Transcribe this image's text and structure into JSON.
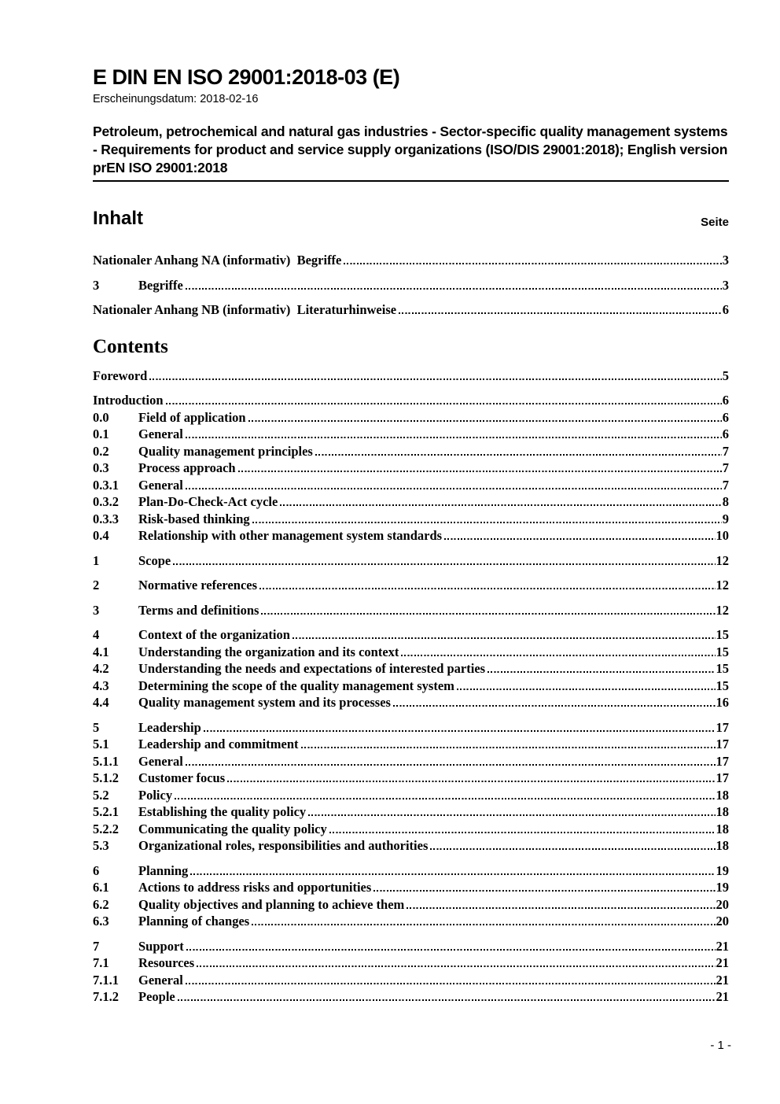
{
  "header": {
    "title": "E DIN EN ISO 29001:2018-03 (E)",
    "date_line": "Erscheinungsdatum: 2018-02-16",
    "subject": "Petroleum, petrochemical and natural gas industries - Sector-specific quality management systems - Requirements for product and service supply organizations (ISO/DIS 29001:2018); English version prEN ISO 29001:2018"
  },
  "inhalt": {
    "heading": "Inhalt",
    "page_column_label": "Seite",
    "groups": [
      [
        {
          "num": "",
          "label": "Nationaler Anhang NA (informativ)  Begriffe",
          "page": "3"
        }
      ],
      [
        {
          "num": "3",
          "label": "Begriffe",
          "page": "3"
        }
      ],
      [
        {
          "num": "",
          "label": "Nationaler Anhang NB (informativ)  Literaturhinweise",
          "page": "6"
        }
      ]
    ]
  },
  "contents": {
    "heading": "Contents",
    "groups": [
      [
        {
          "num": "",
          "label": "Foreword",
          "page": "5"
        }
      ],
      [
        {
          "num": "",
          "label": "Introduction",
          "page": "6"
        },
        {
          "num": "0.0",
          "label": "Field of application",
          "page": "6"
        },
        {
          "num": "0.1",
          "label": "General",
          "page": "6"
        },
        {
          "num": "0.2",
          "label": "Quality management principles",
          "page": "7"
        },
        {
          "num": "0.3",
          "label": "Process approach",
          "page": "7"
        },
        {
          "num": "0.3.1",
          "label": "General",
          "page": "7"
        },
        {
          "num": "0.3.2",
          "label": "Plan-Do-Check-Act cycle",
          "page": "8"
        },
        {
          "num": "0.3.3",
          "label": "Risk-based thinking",
          "page": "9"
        },
        {
          "num": "0.4",
          "label": "Relationship with other management system standards",
          "page": "10"
        }
      ],
      [
        {
          "num": "1",
          "label": "Scope",
          "page": "12"
        }
      ],
      [
        {
          "num": "2",
          "label": "Normative references",
          "page": "12"
        }
      ],
      [
        {
          "num": "3",
          "label": "Terms and definitions",
          "page": "12"
        }
      ],
      [
        {
          "num": "4",
          "label": "Context of the organization",
          "page": "15"
        },
        {
          "num": "4.1",
          "label": "Understanding the organization and its context",
          "page": "15"
        },
        {
          "num": "4.2",
          "label": "Understanding the needs and expectations of interested parties",
          "page": "15"
        },
        {
          "num": "4.3",
          "label": "Determining the scope of the quality management system",
          "page": "15"
        },
        {
          "num": "4.4",
          "label": "Quality management system and its processes",
          "page": "16"
        }
      ],
      [
        {
          "num": "5",
          "label": "Leadership",
          "page": "17"
        },
        {
          "num": "5.1",
          "label": "Leadership and commitment",
          "page": "17"
        },
        {
          "num": "5.1.1",
          "label": "General",
          "page": "17"
        },
        {
          "num": "5.1.2",
          "label": "Customer focus",
          "page": "17"
        },
        {
          "num": "5.2",
          "label": "Policy",
          "page": "18"
        },
        {
          "num": "5.2.1",
          "label": "Establishing the quality policy",
          "page": "18"
        },
        {
          "num": "5.2.2",
          "label": "Communicating the quality policy",
          "page": "18"
        },
        {
          "num": "5.3",
          "label": "Organizational roles, responsibilities and authorities",
          "page": "18"
        }
      ],
      [
        {
          "num": "6",
          "label": "Planning",
          "page": "19"
        },
        {
          "num": "6.1",
          "label": "Actions to address risks and opportunities",
          "page": "19"
        },
        {
          "num": "6.2",
          "label": "Quality objectives and planning to achieve them",
          "page": "20"
        },
        {
          "num": "6.3",
          "label": "Planning of changes",
          "page": "20"
        }
      ],
      [
        {
          "num": "7",
          "label": "Support",
          "page": "21"
        },
        {
          "num": "7.1",
          "label": "Resources",
          "page": "21"
        },
        {
          "num": "7.1.1",
          "label": "General",
          "page": "21"
        },
        {
          "num": "7.1.2",
          "label": "People",
          "page": "21"
        }
      ]
    ]
  },
  "footer": {
    "page_number": "- 1 -"
  }
}
